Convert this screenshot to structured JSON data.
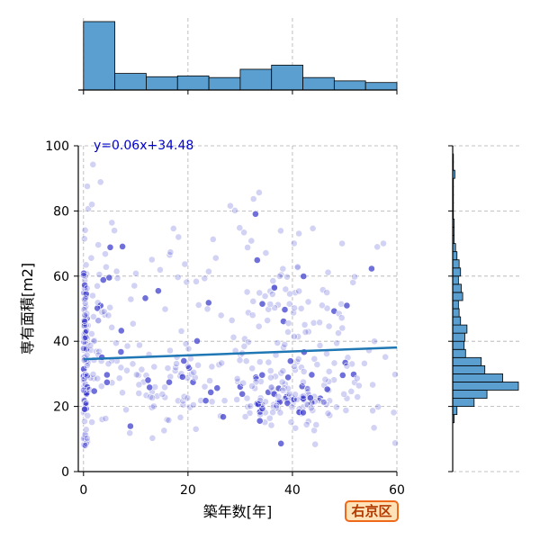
{
  "chart_data": {
    "type": "scatter",
    "xlabel": "築年数[年]",
    "ylabel": "専有面積[m2]",
    "xlim": [
      -1,
      60
    ],
    "ylim": [
      0,
      100
    ],
    "x_ticks": [
      0,
      20,
      40,
      60
    ],
    "y_ticks": [
      0,
      20,
      40,
      60,
      80,
      100
    ],
    "grid": true,
    "regression": {
      "label": "y=0.06x+34.48",
      "slope": 0.06,
      "intercept": 34.48
    },
    "colors": {
      "point": "#3333cc",
      "line": "#1f77b4",
      "hist": "#5a9fcf",
      "label": "#0000cc"
    },
    "x_histogram": {
      "bin_edges": [
        0,
        6,
        12,
        18,
        24,
        30,
        36,
        42,
        48,
        54,
        60
      ],
      "counts": [
        165,
        40,
        32,
        34,
        30,
        50,
        60,
        30,
        22,
        18
      ]
    },
    "y_histogram": {
      "bin_edges": [
        0,
        2.5,
        5,
        7.5,
        10,
        12.5,
        15,
        17.5,
        20,
        22.5,
        25,
        27.5,
        30,
        32.5,
        35,
        37.5,
        40,
        42.5,
        45,
        47.5,
        50,
        52.5,
        55,
        57.5,
        60,
        62.5,
        65,
        67.5,
        70,
        72.5,
        75,
        77.5,
        80,
        82.5,
        85,
        87.5,
        90,
        92.5,
        95,
        97.5,
        100
      ],
      "counts": [
        0,
        0,
        0,
        0,
        0,
        0,
        2,
        6,
        30,
        48,
        92,
        70,
        45,
        40,
        18,
        16,
        17,
        20,
        11,
        9,
        8,
        14,
        12,
        8,
        11,
        9,
        6,
        4,
        2,
        2,
        2,
        1,
        1,
        1,
        1,
        1,
        3,
        1,
        1,
        0
      ]
    }
  },
  "ward_label": "右京区"
}
